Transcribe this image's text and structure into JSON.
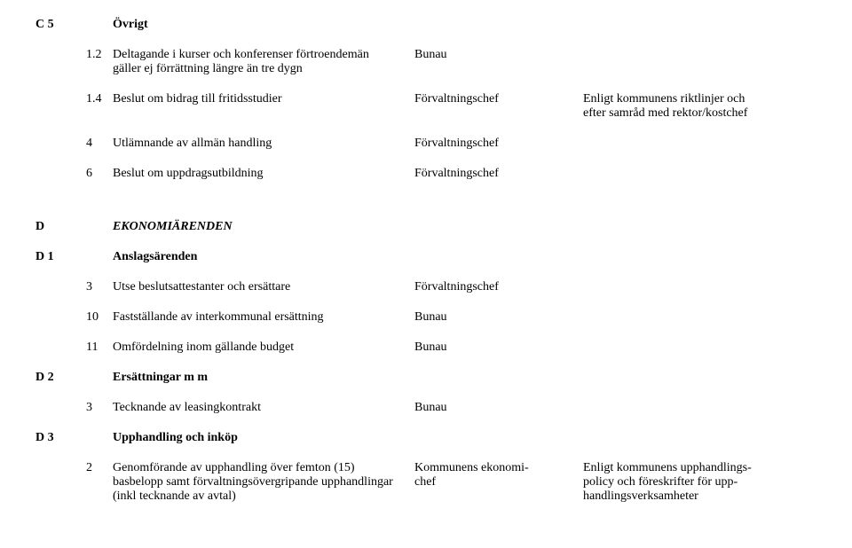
{
  "c5": {
    "code": "C 5",
    "heading": "Övrigt",
    "items": [
      {
        "num": "1.2",
        "text_line1": "Deltagande i kurser och konferenser förtroendemän",
        "text_line2": "gäller ej förrättning längre än tre dygn",
        "mid": "Bunau",
        "right": ""
      },
      {
        "num": "1.4",
        "text_line1": "Beslut om bidrag till fritidsstudier",
        "text_line2": "",
        "mid": "Förvaltningschef",
        "right_line1": "Enligt kommunens riktlinjer och",
        "right_line2": "efter samråd med rektor/kostchef"
      },
      {
        "num": "4",
        "text_line1": "Utlämnande av allmän handling",
        "text_line2": "",
        "mid": "Förvaltningschef",
        "right": ""
      },
      {
        "num": "6",
        "text_line1": "Beslut om uppdragsutbildning",
        "text_line2": "",
        "mid": "Förvaltningschef",
        "right": ""
      }
    ]
  },
  "d": {
    "code": "D",
    "heading": "EKONOMIÄRENDEN"
  },
  "d1": {
    "code": "D 1",
    "heading": "Anslagsärenden",
    "items": [
      {
        "num": "3",
        "text": "Utse beslutsattestanter och ersättare",
        "mid": "Förvaltningschef"
      },
      {
        "num": "10",
        "text": "Fastställande av interkommunal ersättning",
        "mid": "Bunau"
      },
      {
        "num": "11",
        "text": "Omfördelning inom gällande budget",
        "mid": "Bunau"
      }
    ]
  },
  "d2": {
    "code": "D 2",
    "heading": "Ersättningar m m",
    "items": [
      {
        "num": "3",
        "text": "Tecknande av leasingkontrakt",
        "mid": "Bunau"
      }
    ]
  },
  "d3": {
    "code": "D 3",
    "heading": "Upphandling och inköp",
    "items": [
      {
        "num": "2",
        "text_line1": "Genomförande av upphandling över femton (15)",
        "text_line2": "basbelopp samt förvaltningsövergripande upphandlingar",
        "text_line3": "(inkl tecknande av avtal)",
        "mid_line1": "Kommunens ekonomi-",
        "mid_line2": "chef",
        "right_line1": "Enligt kommunens upphandlings-",
        "right_line2": "policy och föreskrifter för upp-",
        "right_line3": "handlingsverksamheter"
      }
    ]
  }
}
